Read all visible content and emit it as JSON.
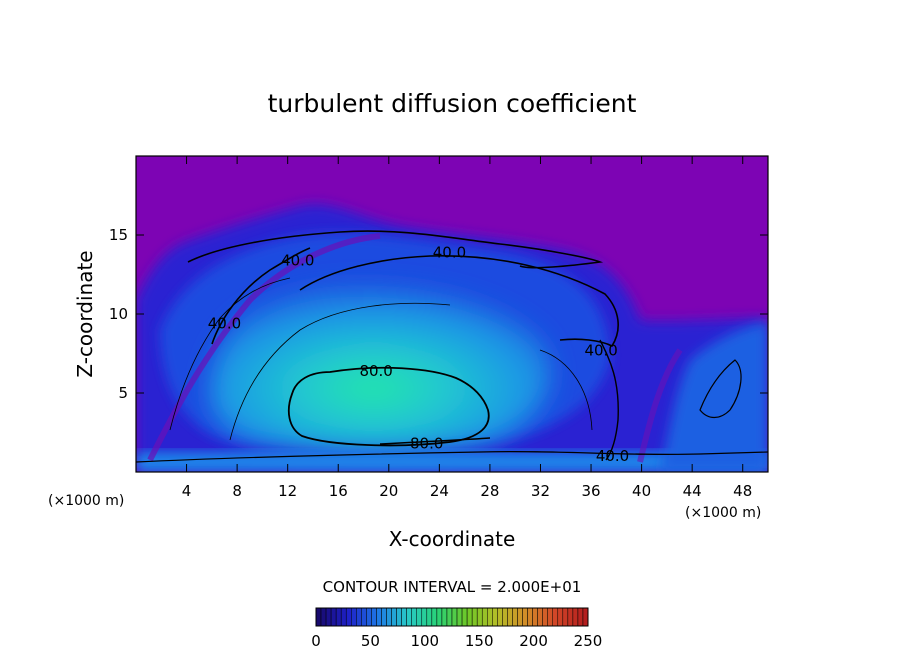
{
  "chart_data": {
    "type": "heatmap",
    "title": "turbulent diffusion coefficient",
    "xlabel": "X-coordinate",
    "ylabel": "Z-coordinate",
    "x_unit": "(×1000 m)",
    "z_unit": "(×1000 m)",
    "xlim": [
      0,
      50
    ],
    "ylim": [
      0,
      20
    ],
    "x_ticks": [
      4,
      8,
      12,
      16,
      20,
      24,
      28,
      32,
      36,
      40,
      44,
      48
    ],
    "y_ticks": [
      5,
      10,
      15
    ],
    "contour_interval_label": "CONTOUR INTERVAL = 2.000E+01",
    "contour_labels": [
      {
        "text": "40.0",
        "x": 24.8,
        "z": 13.9
      },
      {
        "text": "40.0",
        "x": 12.8,
        "z": 13.4
      },
      {
        "text": "40.0",
        "x": 7.0,
        "z": 9.4
      },
      {
        "text": "40.0",
        "x": 36.8,
        "z": 7.7
      },
      {
        "text": "80.0",
        "x": 19.0,
        "z": 6.4
      },
      {
        "text": "80.0",
        "x": 23.0,
        "z": 1.8
      },
      {
        "text": "40.0",
        "x": 37.7,
        "z": 1.0
      }
    ],
    "colorbar": {
      "min": 0,
      "max": 250,
      "tick_labels": [
        "0",
        "50",
        "100",
        "150",
        "200",
        "250"
      ],
      "colors": [
        "#180a6e",
        "#1e20c8",
        "#1e78e6",
        "#28c8c8",
        "#28d278",
        "#6ec828",
        "#b4be28",
        "#d28c28",
        "#d24628",
        "#b41e1e"
      ]
    },
    "colors": {
      "background_field": "#7d04b4",
      "low": "#2218c8",
      "mid": "#1e6ee6",
      "high": "#22c8d2",
      "peak": "#20e6a0"
    }
  }
}
